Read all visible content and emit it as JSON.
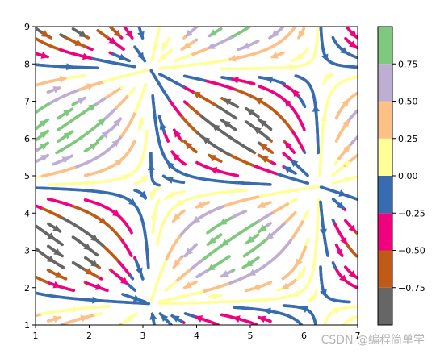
{
  "chart_data": {
    "type": "streamplot",
    "xlim": [
      1,
      7
    ],
    "ylim": [
      1,
      9
    ],
    "x_ticks": [
      "1",
      "2",
      "3",
      "4",
      "5",
      "6",
      "7"
    ],
    "y_ticks": [
      "1",
      "2",
      "3",
      "4",
      "5",
      "6",
      "7",
      "8",
      "9"
    ],
    "field": {
      "u": "sin(x)",
      "v": "cos(y)",
      "color": "sin(x)*cos(y)"
    },
    "grid": false,
    "colormap": "Accent",
    "colorbar": {
      "vmin": -1,
      "vmax": 1,
      "bins": 8,
      "colors": [
        "#666666",
        "#bf5b17",
        "#f0027f",
        "#386cb0",
        "#ffff99",
        "#fdc086",
        "#beaed4",
        "#7fc97f"
      ],
      "tick_values": [
        -0.75,
        -0.5,
        -0.25,
        0.0,
        0.25,
        0.5,
        0.75
      ],
      "tick_labels": [
        "−0.75",
        "−0.50",
        "−0.25",
        "0.00",
        "0.25",
        "0.50",
        "0.75"
      ]
    }
  },
  "watermark": "CSDN @编程简单学"
}
